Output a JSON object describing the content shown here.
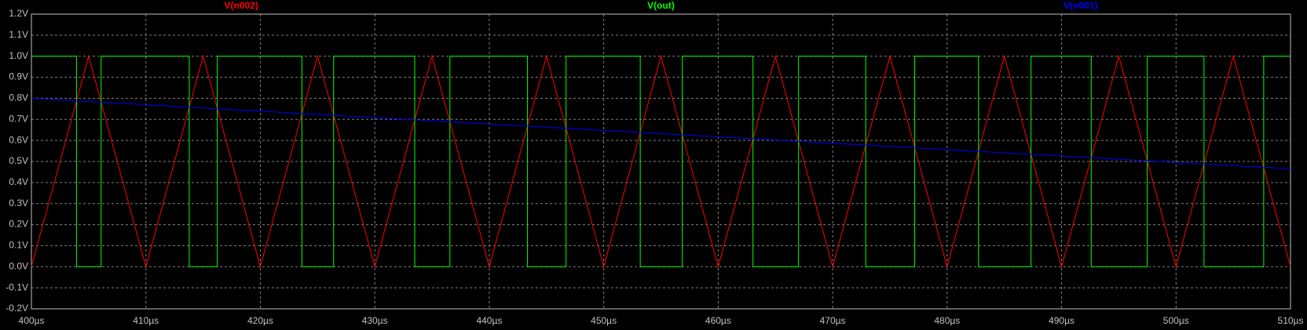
{
  "chart_data": {
    "type": "line",
    "xlim": [
      400,
      510
    ],
    "ylim": [
      -0.2,
      1.2
    ],
    "grid": true,
    "xticks": [
      {
        "value": 400,
        "label": "400µs"
      },
      {
        "value": 410,
        "label": "410µs"
      },
      {
        "value": 420,
        "label": "420µs"
      },
      {
        "value": 430,
        "label": "430µs"
      },
      {
        "value": 440,
        "label": "440µs"
      },
      {
        "value": 450,
        "label": "450µs"
      },
      {
        "value": 460,
        "label": "460µs"
      },
      {
        "value": 470,
        "label": "470µs"
      },
      {
        "value": 480,
        "label": "480µs"
      },
      {
        "value": 490,
        "label": "490µs"
      },
      {
        "value": 500,
        "label": "500µs"
      },
      {
        "value": 510,
        "label": "510µs"
      }
    ],
    "yticks": [
      {
        "value": -0.2,
        "label": "-0.2V"
      },
      {
        "value": -0.1,
        "label": "-0.1V"
      },
      {
        "value": 0,
        "label": "0.0V"
      },
      {
        "value": 0.1,
        "label": "0.1V"
      },
      {
        "value": 0.2,
        "label": "0.2V"
      },
      {
        "value": 0.3,
        "label": "0.3V"
      },
      {
        "value": 0.4,
        "label": "0.4V"
      },
      {
        "value": 0.5,
        "label": "0.5V"
      },
      {
        "value": 0.6,
        "label": "0.6V"
      },
      {
        "value": 0.7,
        "label": "0.7V"
      },
      {
        "value": 0.8,
        "label": "0.8V"
      },
      {
        "value": 0.9,
        "label": "0.9V"
      },
      {
        "value": 1.0,
        "label": "1.0V"
      },
      {
        "value": 1.1,
        "label": "1.1V"
      },
      {
        "value": 1.2,
        "label": "1.2V"
      }
    ],
    "series": [
      {
        "name": "V(n002)",
        "color": "#ff0000",
        "x": [
          400,
          405,
          410,
          415,
          420,
          425,
          430,
          435,
          440,
          445,
          450,
          455,
          460,
          465,
          470,
          475,
          480,
          485,
          490,
          495,
          500,
          505,
          510
        ],
        "values": [
          0,
          1,
          0,
          1,
          0,
          1,
          0,
          1,
          0,
          1,
          0,
          1,
          0,
          1,
          0,
          1,
          0,
          1,
          0,
          1,
          0,
          1,
          0
        ]
      },
      {
        "name": "V(out)",
        "color": "#00ff00",
        "x": [
          400,
          403.94,
          403.94,
          406.09,
          406.09,
          413.79,
          413.79,
          416.24,
          416.24,
          423.63,
          423.63,
          426.4,
          426.4,
          433.49,
          433.49,
          436.56,
          436.56,
          443.34,
          443.34,
          446.71,
          446.71,
          453.19,
          453.19,
          456.86,
          456.86,
          463.04,
          463.04,
          467.02,
          467.02,
          472.89,
          472.89,
          477.17,
          477.17,
          482.74,
          482.74,
          487.33,
          487.33,
          492.59,
          492.59,
          497.48,
          497.48,
          502.44,
          502.44,
          507.66,
          507.66,
          510
        ],
        "values": [
          1,
          1,
          0,
          0,
          1,
          1,
          0,
          0,
          1,
          1,
          0,
          0,
          1,
          1,
          0,
          0,
          1,
          1,
          0,
          0,
          1,
          1,
          0,
          0,
          1,
          1,
          0,
          0,
          1,
          1,
          0,
          0,
          1,
          1,
          0,
          0,
          1,
          1,
          0,
          0,
          1,
          1,
          0,
          0,
          1,
          1
        ]
      },
      {
        "name": "V(n001)",
        "color": "#0000ff",
        "x": [
          400,
          510
        ],
        "values": [
          0.8,
          0.465
        ]
      }
    ]
  }
}
